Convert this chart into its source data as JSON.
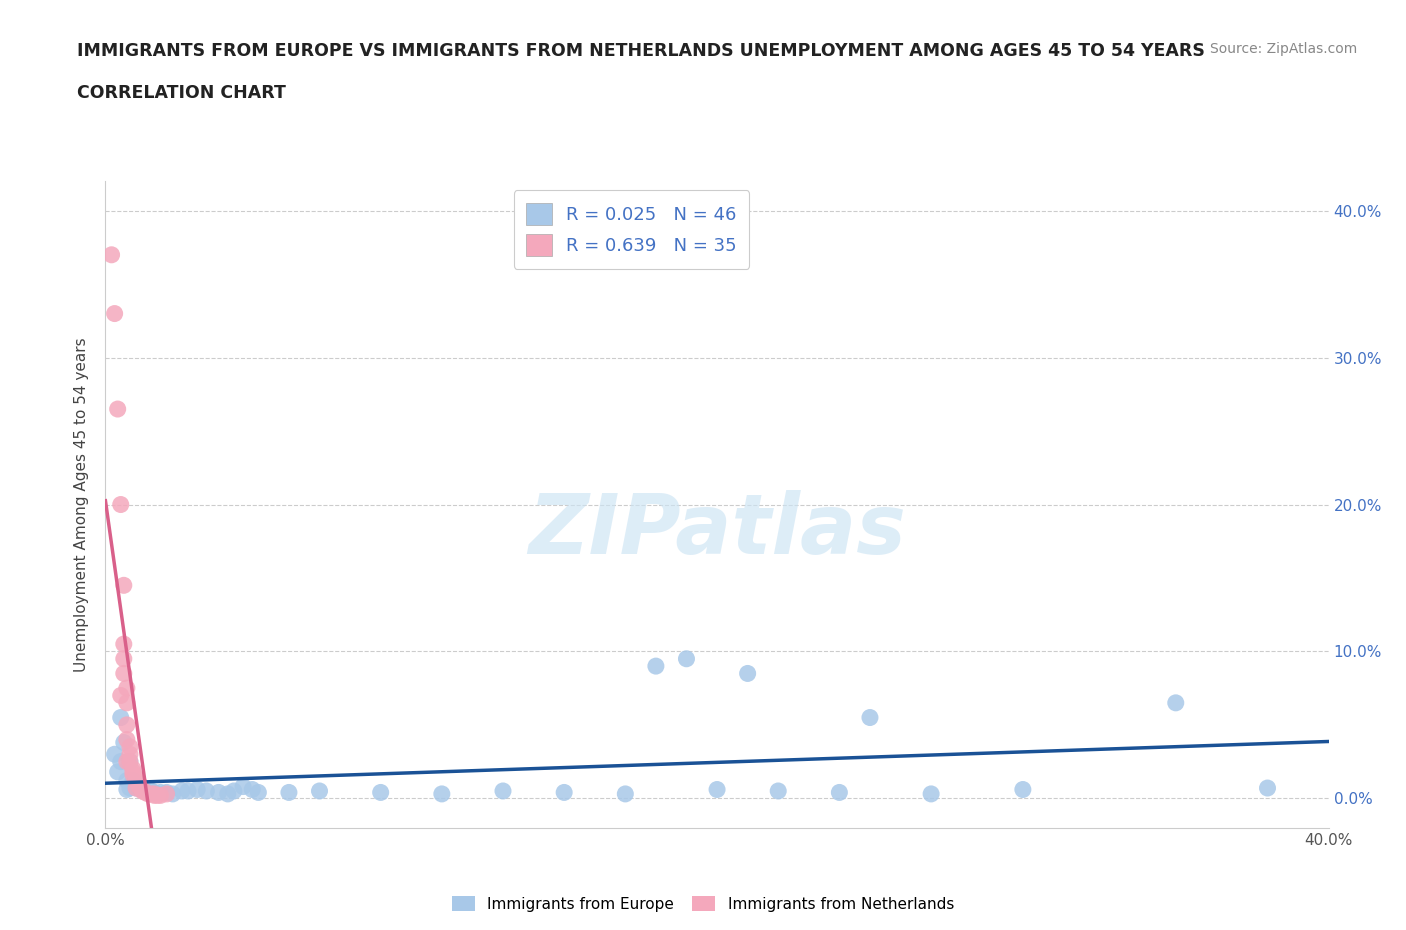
{
  "title_line1": "IMMIGRANTS FROM EUROPE VS IMMIGRANTS FROM NETHERLANDS UNEMPLOYMENT AMONG AGES 45 TO 54 YEARS",
  "title_line2": "CORRELATION CHART",
  "source": "Source: ZipAtlas.com",
  "ylabel": "Unemployment Among Ages 45 to 54 years",
  "r_europe": 0.025,
  "n_europe": 46,
  "r_netherlands": 0.639,
  "n_netherlands": 35,
  "europe_color": "#a8c8e8",
  "netherlands_color": "#f4a8bc",
  "europe_line_color": "#1a5296",
  "netherlands_line_color": "#d9608a",
  "europe_scatter_x": [
    0.003,
    0.004,
    0.005,
    0.005,
    0.006,
    0.007,
    0.007,
    0.008,
    0.008,
    0.009,
    0.01,
    0.012,
    0.013,
    0.015,
    0.016,
    0.018,
    0.02,
    0.022,
    0.025,
    0.027,
    0.03,
    0.033,
    0.037,
    0.04,
    0.042,
    0.045,
    0.048,
    0.05,
    0.06,
    0.07,
    0.09,
    0.11,
    0.13,
    0.15,
    0.17,
    0.2,
    0.22,
    0.24,
    0.27,
    0.3,
    0.18,
    0.19,
    0.21,
    0.25,
    0.35,
    0.38
  ],
  "europe_scatter_y": [
    0.03,
    0.018,
    0.055,
    0.025,
    0.038,
    0.012,
    0.006,
    0.025,
    0.007,
    0.012,
    0.007,
    0.006,
    0.005,
    0.005,
    0.004,
    0.004,
    0.004,
    0.003,
    0.005,
    0.005,
    0.006,
    0.005,
    0.004,
    0.003,
    0.005,
    0.008,
    0.006,
    0.004,
    0.004,
    0.005,
    0.004,
    0.003,
    0.005,
    0.004,
    0.003,
    0.006,
    0.005,
    0.004,
    0.003,
    0.006,
    0.09,
    0.095,
    0.085,
    0.055,
    0.065,
    0.007
  ],
  "netherlands_scatter_x": [
    0.002,
    0.003,
    0.004,
    0.005,
    0.005,
    0.006,
    0.006,
    0.006,
    0.006,
    0.007,
    0.007,
    0.007,
    0.007,
    0.007,
    0.008,
    0.008,
    0.008,
    0.009,
    0.009,
    0.009,
    0.01,
    0.01,
    0.01,
    0.011,
    0.011,
    0.012,
    0.012,
    0.013,
    0.014,
    0.015,
    0.016,
    0.016,
    0.017,
    0.018,
    0.02
  ],
  "netherlands_scatter_y": [
    0.37,
    0.33,
    0.265,
    0.07,
    0.2,
    0.145,
    0.105,
    0.095,
    0.085,
    0.075,
    0.065,
    0.05,
    0.04,
    0.025,
    0.035,
    0.03,
    0.025,
    0.02,
    0.018,
    0.016,
    0.014,
    0.012,
    0.007,
    0.01,
    0.008,
    0.006,
    0.005,
    0.004,
    0.003,
    0.003,
    0.003,
    0.002,
    0.002,
    0.002,
    0.003
  ],
  "watermark": "ZIPatlas",
  "xlim": [
    0.0,
    0.4
  ],
  "ylim": [
    -0.02,
    0.42
  ],
  "yticks": [
    0.0,
    0.1,
    0.2,
    0.3,
    0.4
  ],
  "ytick_labels": [
    "0.0%",
    "10.0%",
    "20.0%",
    "30.0%",
    "40.0%"
  ],
  "xticks": [
    0.0,
    0.1,
    0.2,
    0.3,
    0.4
  ],
  "xtick_labels_show": [
    "0.0%",
    "",
    "",
    "",
    "40.0%"
  ],
  "legend_r_color": "#4472c4",
  "title_fontsize": 12.5,
  "source_fontsize": 10,
  "tick_fontsize": 11,
  "ylabel_fontsize": 11
}
